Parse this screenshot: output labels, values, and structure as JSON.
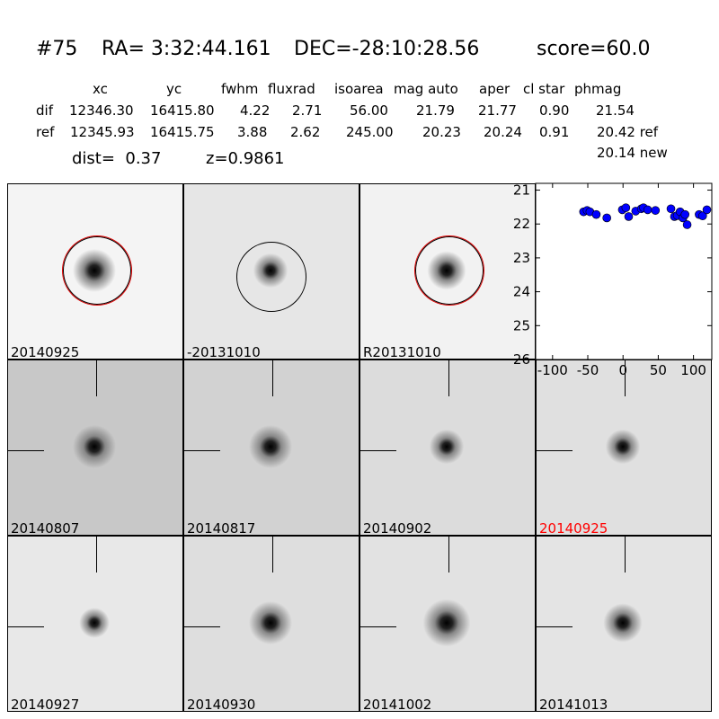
{
  "header": {
    "id": "#75",
    "ra": "RA= 3:32:44.161",
    "dec": "DEC=-28:10:28.56",
    "score": "score=60.0"
  },
  "table": {
    "columns": [
      "xc",
      "yc",
      "fwhm",
      "fluxrad",
      "isoarea",
      "mag auto",
      "aper",
      "cl star",
      "phmag"
    ],
    "rows": [
      {
        "label": "dif",
        "values": [
          "12346.30",
          "16415.80",
          "4.22",
          "2.71",
          "56.00",
          "21.79",
          "21.77",
          "0.90",
          "21.54"
        ]
      },
      {
        "label": "ref",
        "values": [
          "12345.93",
          "16415.75",
          "3.88",
          "2.62",
          "245.00",
          "20.23",
          "20.24",
          "0.91",
          "20.42 ref"
        ]
      }
    ],
    "extra": "20.14 new"
  },
  "dist": "dist=  0.37",
  "z": "z=0.9861",
  "stamps": [
    {
      "label": "20140925",
      "bg": "#f4f4f4",
      "star": 1.0,
      "circle": "red-black",
      "highlight": false
    },
    {
      "label": "-20131010",
      "bg": "#e6e6e6",
      "star": 0.8,
      "circle": "black",
      "highlight": false
    },
    {
      "label": "R20131010",
      "bg": "#f2f2f2",
      "star": 0.9,
      "circle": "red-black",
      "highlight": false
    },
    {
      "label": "20140807",
      "bg": "#c8c8c8",
      "star": 1.0,
      "circle": "",
      "highlight": false
    },
    {
      "label": "20140817",
      "bg": "#d2d2d2",
      "star": 1.0,
      "circle": "",
      "highlight": false
    },
    {
      "label": "20140902",
      "bg": "#dcdcdc",
      "star": 0.8,
      "circle": "",
      "highlight": false
    },
    {
      "label": "20140925",
      "bg": "#e0e0e0",
      "star": 0.8,
      "circle": "",
      "highlight": false,
      "label_color": "#ff0000"
    },
    {
      "label": "20140927",
      "bg": "#e8e8e8",
      "star": 0.7,
      "circle": "",
      "highlight": false
    },
    {
      "label": "20140930",
      "bg": "#dedede",
      "star": 1.0,
      "circle": "",
      "highlight": false
    },
    {
      "label": "20141002",
      "bg": "#e2e2e2",
      "star": 1.1,
      "circle": "",
      "highlight": false
    },
    {
      "label": "20141013",
      "bg": "#e4e4e4",
      "star": 0.9,
      "circle": "",
      "highlight": false
    }
  ],
  "chart_data": {
    "type": "scatter",
    "xlim": [
      -124,
      126
    ],
    "ylim": [
      26,
      20.8
    ],
    "xticks": [
      "-100",
      "-50",
      "0",
      "50",
      "100"
    ],
    "xtick_values": [
      -100,
      -50,
      0,
      50,
      100
    ],
    "yticks": [
      "21",
      "22",
      "23",
      "24",
      "25",
      "26"
    ],
    "ytick_values": [
      21,
      22,
      23,
      24,
      25,
      26
    ],
    "color": "#0000ff",
    "points": [
      [
        -56,
        21.64
      ],
      [
        -51,
        21.6
      ],
      [
        -47,
        21.64
      ],
      [
        -38,
        21.72
      ],
      [
        -23,
        21.82
      ],
      [
        -1,
        21.58
      ],
      [
        4,
        21.52
      ],
      [
        8,
        21.78
      ],
      [
        18,
        21.62
      ],
      [
        26,
        21.55
      ],
      [
        29,
        21.52
      ],
      [
        35,
        21.58
      ],
      [
        46,
        21.6
      ],
      [
        68,
        21.55
      ],
      [
        73,
        21.78
      ],
      [
        77,
        21.75
      ],
      [
        81,
        21.64
      ],
      [
        85,
        21.82
      ],
      [
        88,
        21.72
      ],
      [
        91,
        22.02
      ],
      [
        108,
        21.72
      ],
      [
        113,
        21.76
      ],
      [
        119,
        21.58
      ]
    ]
  }
}
